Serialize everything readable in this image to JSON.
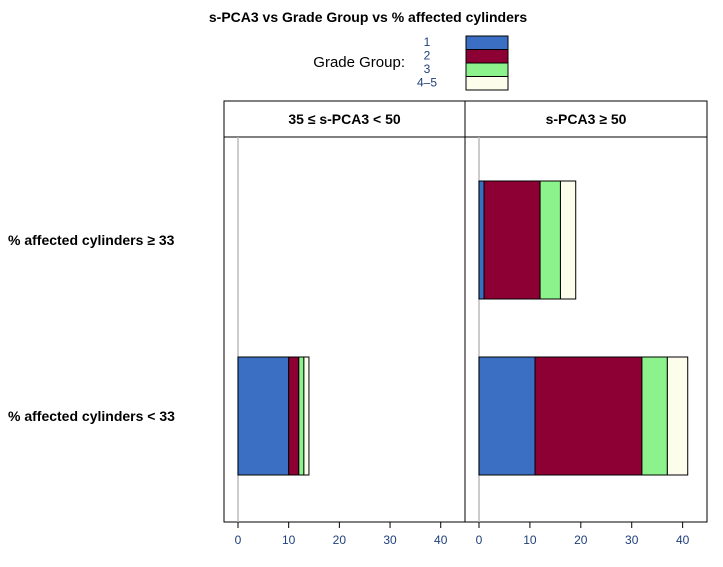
{
  "chart_data": {
    "type": "bar",
    "orientation": "horizontal",
    "stacked": true,
    "title": "s-PCA3 vs Grade Group vs % affected cylinders",
    "legend": {
      "title": "Grade Group:",
      "placement": "top-center",
      "entries": [
        {
          "label": "1",
          "color": "#3a6fc4"
        },
        {
          "label": "2",
          "color": "#8c0034"
        },
        {
          "label": "3",
          "color": "#8cf28c"
        },
        {
          "label": "4–5",
          "color": "#fdfdec"
        }
      ]
    },
    "panels": [
      {
        "label": "35 ≤ s-PCA3 < 50"
      },
      {
        "label": "s-PCA3 ≥ 50"
      }
    ],
    "categories": [
      "% affected cylinders ≥ 33",
      "% affected cylinders < 33"
    ],
    "xlim": [
      0,
      44
    ],
    "xticks": [
      "0",
      "10",
      "20",
      "30",
      "40"
    ],
    "xtick_values": [
      0,
      10,
      20,
      30,
      40
    ],
    "grid": false,
    "series": [
      {
        "name": "1",
        "values": [
          [
            0,
            10
          ],
          [
            1,
            11
          ]
        ]
      },
      {
        "name": "2",
        "values": [
          [
            0,
            2
          ],
          [
            11,
            21
          ]
        ]
      },
      {
        "name": "3",
        "values": [
          [
            0,
            1
          ],
          [
            4,
            5
          ]
        ]
      },
      {
        "name": "4–5",
        "values": [
          [
            0,
            1
          ],
          [
            3,
            4
          ]
        ]
      }
    ]
  }
}
